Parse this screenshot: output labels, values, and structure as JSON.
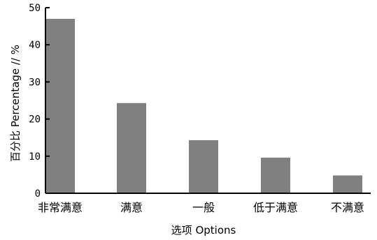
{
  "chart_data": {
    "type": "bar",
    "categories": [
      "非常满意",
      "满意",
      "一般",
      "低于满意",
      "不满意"
    ],
    "values": [
      47,
      24.3,
      14.3,
      9.6,
      4.8
    ],
    "xlabel": "选项 Options",
    "ylabel": "百分比 Percentage // %",
    "ylim": [
      0,
      50
    ],
    "yticks": [
      0,
      10,
      20,
      30,
      40,
      50
    ],
    "grid": false,
    "bar_color": "#808080",
    "axis_color": "#000000"
  }
}
